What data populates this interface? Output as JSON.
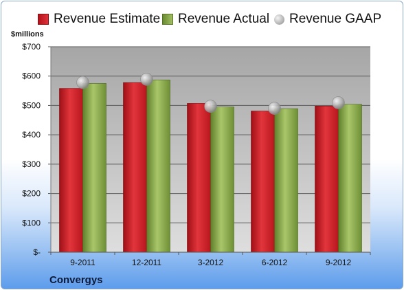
{
  "legend": {
    "estimate": "Revenue Estimate",
    "actual": "Revenue Actual",
    "gaap": "Revenue GAAP"
  },
  "units_label": "$millions",
  "company": "Convergys",
  "colors": {
    "estimate": "#c8202a",
    "actual": "#8aa84a",
    "gaap": "#b8b8b8",
    "plot_bg_top": "#a9a9a9",
    "plot_bg_bottom": "#dcdcdc"
  },
  "chart_data": {
    "type": "bar",
    "categories": [
      "9-2011",
      "12-2011",
      "3-2012",
      "6-2012",
      "9-2012"
    ],
    "series": [
      {
        "name": "Revenue Estimate",
        "values": [
          558,
          578,
          507,
          481,
          498
        ]
      },
      {
        "name": "Revenue Actual",
        "values": [
          575,
          587,
          495,
          489,
          504
        ]
      },
      {
        "name": "Revenue GAAP",
        "values": [
          578,
          589,
          497,
          490,
          509
        ]
      }
    ],
    "y_tick_labels": [
      "$-",
      "$100",
      "$200",
      "$300",
      "$400",
      "$500",
      "$600",
      "$700"
    ],
    "ylim": [
      0,
      700
    ],
    "grid": true,
    "legend_position": "top"
  }
}
